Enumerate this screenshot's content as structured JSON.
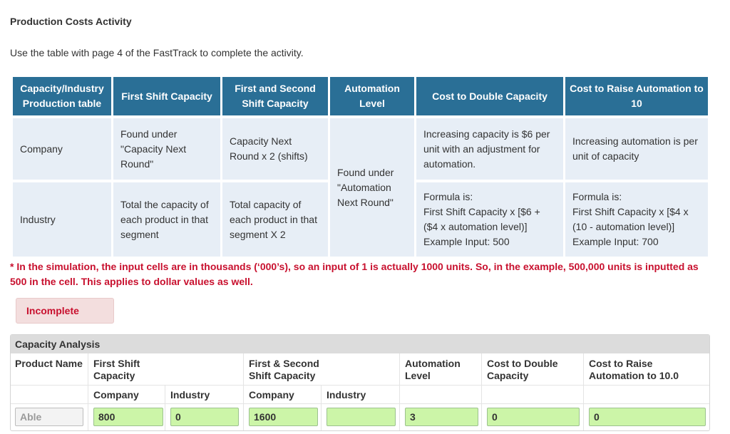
{
  "page": {
    "title": "Production Costs Activity",
    "intro": "Use the table with page 4 of the FastTrack to complete the activity."
  },
  "ref_table": {
    "headers": [
      "Capacity/Industry Production table",
      "First Shift Capacity",
      "First and Second Shift Capacity",
      "Automation Level",
      "Cost to Double Capacity",
      "Cost to Raise Automation to 10"
    ],
    "company": {
      "label": "Company",
      "first_shift": "Found under \"Capacity Next Round\"",
      "first_second": "Capacity Next Round x 2 (shifts)",
      "double": "Increasing capacity is $6 per unit with an adjustment for automation.",
      "raise": "Increasing automation is per unit of capacity"
    },
    "industry": {
      "label": "Industry",
      "first_shift": "Total the capacity of each product in that segment",
      "first_second": "Total capacity of each product in that segment X 2",
      "double": "Formula is:\nFirst Shift Capacity x [$6  +  ($4 x automation level)]\nExample Input: 500",
      "raise": "Formula is:\nFirst Shift Capacity x [$4 x (10 - automation level)]\nExample Input: 700"
    },
    "automation_note": "Found under \"Automation Next Round\""
  },
  "note": "* In the simulation, the input cells are in thousands (‘000’s), so an input of 1 is actually 1000 units. So, in the example, 500,000 units is inputted as 500 in the cell. This applies to dollar values as well.",
  "status": "Incomplete",
  "analysis": {
    "title": "Capacity Analysis",
    "columns": {
      "product_name": "Product Name",
      "first_shift": "First Shift Capacity",
      "first_second": "First & Second Shift Capacity",
      "automation": "Automation Level",
      "double": "Cost to Double Capacity",
      "raise": "Cost to Raise Automation to 10.0"
    },
    "sub_company": "Company",
    "sub_industry": "Industry",
    "row": {
      "product": "Able",
      "first_shift_company": "800",
      "first_shift_industry": "0",
      "first_second_company": "1600",
      "first_second_industry": "",
      "automation": "3",
      "double": "0",
      "raise": "0"
    }
  },
  "colors": {
    "header_bg": "#2a6f96",
    "cell_bg": "#e7eef6",
    "note_red": "#c8102e",
    "input_green": "#ccf5a8"
  }
}
